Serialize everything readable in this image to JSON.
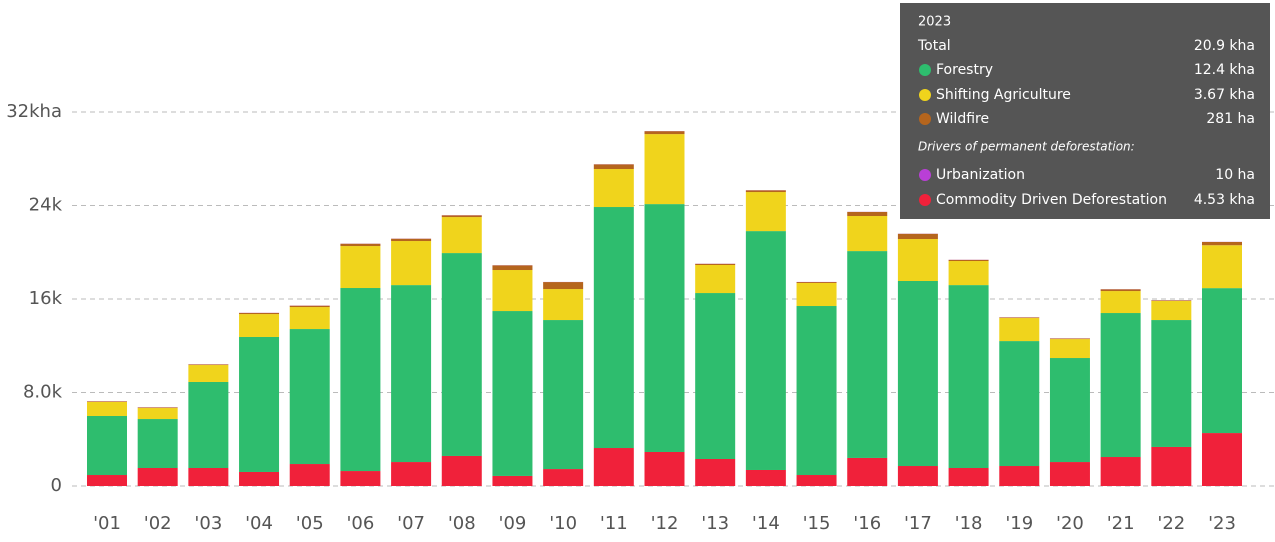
{
  "chart_data": {
    "type": "stacked_bar",
    "categories": [
      "'01",
      "'02",
      "'03",
      "'04",
      "'05",
      "'06",
      "'07",
      "'08",
      "'09",
      "'10",
      "'11",
      "'12",
      "'13",
      "'14",
      "'15",
      "'16",
      "'17",
      "'18",
      "'19",
      "'20",
      "'21",
      "'22",
      "'23"
    ],
    "series": [
      {
        "name": "Forestry",
        "color": "#2ebd6e",
        "values": [
          5050,
          4190,
          7360,
          11550,
          11550,
          15660,
          15140,
          17360,
          14110,
          12750,
          20620,
          21210,
          14200,
          20440,
          14460,
          17700,
          15830,
          15650,
          10690,
          8900,
          12320,
          10860,
          12400
        ]
      },
      {
        "name": "Shifting Agriculture",
        "color": "#f0d41c",
        "values": [
          1200,
          940,
          1450,
          1960,
          1880,
          3590,
          3770,
          3080,
          3510,
          2650,
          3250,
          5990,
          2400,
          3340,
          1970,
          3000,
          3590,
          2060,
          1970,
          1620,
          1880,
          1630,
          3670
        ]
      },
      {
        "name": "Wildfire",
        "color": "#b5651d",
        "values": [
          50,
          50,
          50,
          100,
          120,
          200,
          200,
          150,
          400,
          600,
          400,
          250,
          100,
          150,
          80,
          350,
          450,
          100,
          50,
          50,
          150,
          50,
          281
        ]
      },
      {
        "name": "Urbanization",
        "color": "#b93fd6",
        "values": [
          10,
          10,
          10,
          10,
          10,
          10,
          10,
          10,
          10,
          10,
          10,
          10,
          10,
          10,
          10,
          10,
          10,
          10,
          10,
          10,
          10,
          10,
          10
        ]
      },
      {
        "name": "Commodity Driven Deforestation",
        "color": "#f0213a",
        "values": [
          940,
          1540,
          1540,
          1200,
          1880,
          1280,
          2050,
          2570,
          860,
          1450,
          3250,
          2910,
          2310,
          1370,
          940,
          2400,
          1710,
          1540,
          1710,
          2050,
          2480,
          3340,
          4530
        ]
      }
    ],
    "ylim": [
      0,
      32000
    ],
    "yticks": [
      {
        "value": 0,
        "label": "0"
      },
      {
        "value": 8000,
        "label": "8.0k"
      },
      {
        "value": 16000,
        "label": "16k"
      },
      {
        "value": 24000,
        "label": "24k"
      },
      {
        "value": 32000,
        "label": "32kha"
      }
    ],
    "grid": true,
    "tooltip": {
      "title": "2023",
      "total_label": "Total",
      "total_value": "20.9 kha",
      "note": "Drivers of permanent deforestation:",
      "value_labels": [
        "12.4 kha",
        "3.67 kha",
        "281 ha",
        "10 ha",
        "4.53 kha"
      ]
    }
  }
}
